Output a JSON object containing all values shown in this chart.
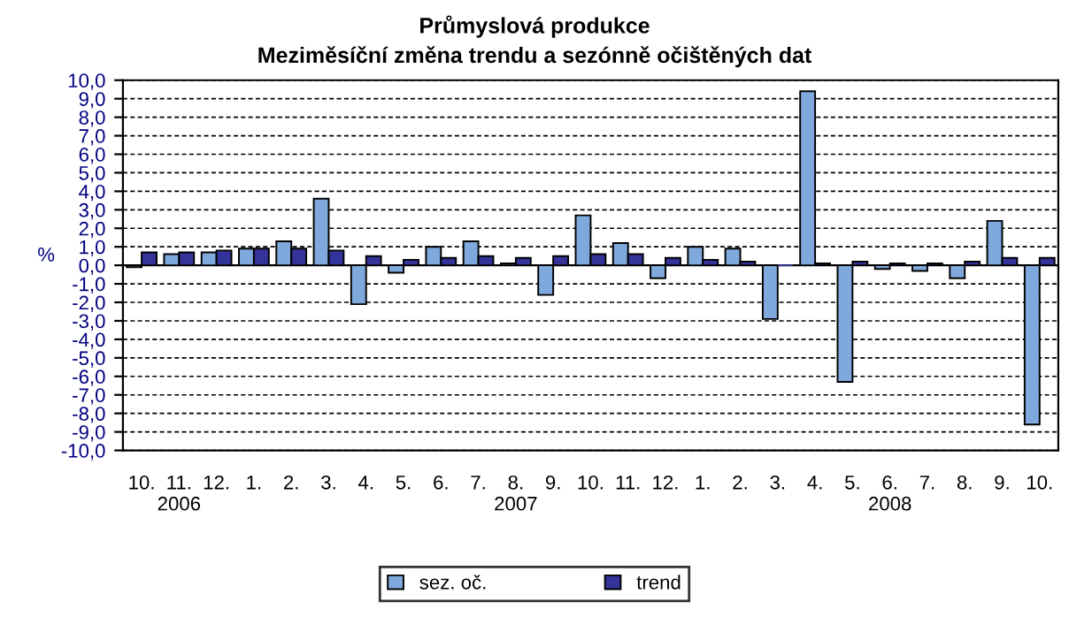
{
  "chart_data": {
    "type": "bar",
    "title": "Průmyslová produkce",
    "subtitle": "Meziměsíční změna trendu a sezónně očištěných dat",
    "ylabel": "%",
    "categories": [
      "10.",
      "11.\n2006",
      "12.",
      "1.",
      "2.",
      "3.",
      "4.",
      "5.",
      "6.",
      "7.",
      "8.\n2007",
      "9.",
      "10.",
      "11.",
      "12.",
      "1.",
      "2.",
      "3.",
      "4.",
      "5.",
      "6.\n2008",
      "7.",
      "8.",
      "9.",
      "10."
    ],
    "series": [
      {
        "name": "sez. oč.",
        "color": "#7fa8dc",
        "values": [
          -0.1,
          0.6,
          0.7,
          0.9,
          1.3,
          3.6,
          -2.1,
          -0.4,
          1.0,
          1.3,
          0.1,
          -1.6,
          2.7,
          1.2,
          -0.7,
          1.0,
          0.9,
          -2.9,
          9.4,
          -6.3,
          -0.2,
          -0.3,
          -0.7,
          2.4,
          -8.6
        ]
      },
      {
        "name": "trend",
        "color": "#333399",
        "values": [
          0.7,
          0.7,
          0.8,
          0.9,
          0.9,
          0.8,
          0.5,
          0.3,
          0.4,
          0.5,
          0.4,
          0.5,
          0.6,
          0.6,
          0.4,
          0.3,
          0.2,
          0.0,
          0.1,
          0.2,
          0.1,
          0.1,
          0.2,
          0.4,
          0.4
        ]
      }
    ],
    "ylim": [
      -10,
      10
    ],
    "yticks": [
      {
        "value": -10,
        "label": "-10,0"
      },
      {
        "value": -9,
        "label": "-9,0"
      },
      {
        "value": -8,
        "label": "-8,0"
      },
      {
        "value": -7,
        "label": "-7,0"
      },
      {
        "value": -6,
        "label": "-6,0"
      },
      {
        "value": -5,
        "label": "-5,0"
      },
      {
        "value": -4,
        "label": "-4,0"
      },
      {
        "value": -3,
        "label": "-3,0"
      },
      {
        "value": -2,
        "label": "-2,0"
      },
      {
        "value": -1,
        "label": "-1,0"
      },
      {
        "value": 0,
        "label": "0,0"
      },
      {
        "value": 1,
        "label": "1,0"
      },
      {
        "value": 2,
        "label": "2,0"
      },
      {
        "value": 3,
        "label": "3,0"
      },
      {
        "value": 4,
        "label": "4,0"
      },
      {
        "value": 5,
        "label": "5,0"
      },
      {
        "value": 6,
        "label": "6,0"
      },
      {
        "value": 7,
        "label": "7,0"
      },
      {
        "value": 8,
        "label": "8,0"
      },
      {
        "value": 9,
        "label": "9,0"
      },
      {
        "value": 10,
        "label": "10,0"
      }
    ],
    "grid": "y",
    "legend": "bottom"
  }
}
